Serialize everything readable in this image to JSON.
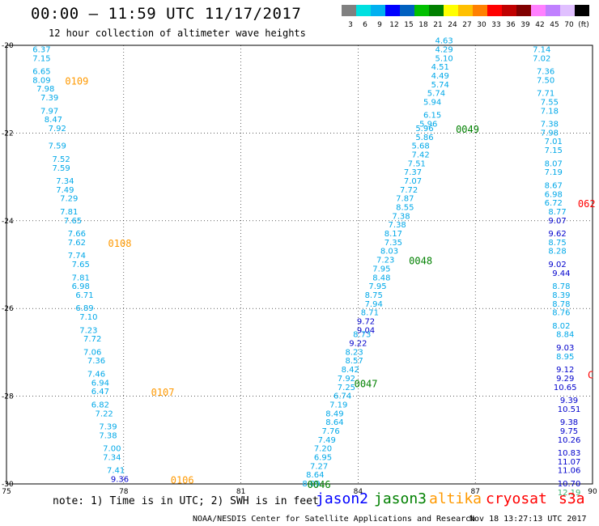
{
  "title": "00:00 – 11:59 UTC 11/17/2017",
  "subtitle": "12 hour collection of altimeter wave heights",
  "colorbar": {
    "ticks": [
      "3",
      "6",
      "9",
      "12",
      "15",
      "18",
      "21",
      "24",
      "27",
      "30",
      "33",
      "36",
      "39",
      "42",
      "45",
      "70",
      "(ft)"
    ],
    "colors": [
      "#808080",
      "#00e0e0",
      "#00b0f0",
      "#0000ff",
      "#0060c0",
      "#00c000",
      "#008000",
      "#ffff00",
      "#ffc000",
      "#ff8000",
      "#ff0000",
      "#c00000",
      "#800000",
      "#ff80ff",
      "#c080ff",
      "#e0c0ff",
      "#000000"
    ]
  },
  "footer": {
    "note": "note: 1) Time is in UTC; 2) SWH is in feet",
    "credit": "NOAA/NESDIS Center for Satellite Applications and Research",
    "date": "Nov 18 13:27:13 UTC 2017"
  },
  "satellites": [
    {
      "name": "jason2",
      "color": "#0000ff"
    },
    {
      "name": "jason3",
      "color": "#008000"
    },
    {
      "name": "altika",
      "color": "#ff9900"
    },
    {
      "name": "cryosat",
      "color": "#ff0000"
    },
    {
      "name": "s3a",
      "color": "#ff0000"
    }
  ],
  "chart_data": {
    "type": "scatter",
    "xlim": [
      75,
      90
    ],
    "ylim": [
      -30,
      -20
    ],
    "xticks": [
      "75",
      "78",
      "81",
      "84",
      "87",
      "90"
    ],
    "yticks": [
      "-20",
      "-22",
      "-24",
      "-26",
      "-28",
      "-30"
    ],
    "grid": true,
    "value_colors": {
      "cyan": "#00a8e8",
      "blue": "#0000cc",
      "green": "#3cb371"
    },
    "tracks": [
      {
        "satellite": "altika",
        "points": [
          {
            "x": 75.9,
            "y": -20.1,
            "v": "6.37",
            "c": "cyan"
          },
          {
            "x": 75.9,
            "y": -20.3,
            "v": "7.15",
            "c": "cyan"
          },
          {
            "x": 75.9,
            "y": -20.6,
            "v": "6.65",
            "c": "cyan"
          },
          {
            "x": 75.9,
            "y": -20.8,
            "v": "8.09",
            "c": "cyan"
          },
          {
            "x": 76.0,
            "y": -21.0,
            "v": "7.98",
            "c": "cyan"
          },
          {
            "x": 76.1,
            "y": -21.2,
            "v": "7.39",
            "c": "cyan"
          },
          {
            "x": 76.1,
            "y": -21.5,
            "v": "7.97",
            "c": "cyan"
          },
          {
            "x": 76.2,
            "y": -21.7,
            "v": "8.47",
            "c": "cyan"
          },
          {
            "x": 76.3,
            "y": -21.9,
            "v": "7.92",
            "c": "cyan"
          },
          {
            "x": 76.3,
            "y": -22.3,
            "v": "7.59",
            "c": "cyan"
          },
          {
            "x": 76.4,
            "y": -22.6,
            "v": "7.52",
            "c": "cyan"
          },
          {
            "x": 76.4,
            "y": -22.8,
            "v": "7.59",
            "c": "cyan"
          },
          {
            "x": 76.5,
            "y": -23.1,
            "v": "7.34",
            "c": "cyan"
          },
          {
            "x": 76.5,
            "y": -23.3,
            "v": "7.49",
            "c": "cyan"
          },
          {
            "x": 76.6,
            "y": -23.5,
            "v": "7.29",
            "c": "cyan"
          },
          {
            "x": 76.6,
            "y": -23.8,
            "v": "7.81",
            "c": "cyan"
          },
          {
            "x": 76.7,
            "y": -24.0,
            "v": "7.65",
            "c": "cyan"
          },
          {
            "x": 76.8,
            "y": -24.3,
            "v": "7.66",
            "c": "cyan"
          },
          {
            "x": 76.8,
            "y": -24.5,
            "v": "7.62",
            "c": "cyan"
          },
          {
            "x": 76.8,
            "y": -24.8,
            "v": "7.74",
            "c": "cyan"
          },
          {
            "x": 76.9,
            "y": -25.0,
            "v": "7.65",
            "c": "cyan"
          },
          {
            "x": 76.9,
            "y": -25.3,
            "v": "7.81",
            "c": "cyan"
          },
          {
            "x": 76.9,
            "y": -25.5,
            "v": "6.98",
            "c": "cyan"
          },
          {
            "x": 77.0,
            "y": -25.7,
            "v": "6.71",
            "c": "cyan"
          },
          {
            "x": 77.0,
            "y": -26.0,
            "v": "6.89",
            "c": "cyan"
          },
          {
            "x": 77.1,
            "y": -26.2,
            "v": "7.10",
            "c": "cyan"
          },
          {
            "x": 77.1,
            "y": -26.5,
            "v": "7.23",
            "c": "cyan"
          },
          {
            "x": 77.2,
            "y": -26.7,
            "v": "7.72",
            "c": "cyan"
          },
          {
            "x": 77.2,
            "y": -27.0,
            "v": "7.06",
            "c": "cyan"
          },
          {
            "x": 77.3,
            "y": -27.2,
            "v": "7.36",
            "c": "cyan"
          },
          {
            "x": 77.3,
            "y": -27.5,
            "v": "7.46",
            "c": "cyan"
          },
          {
            "x": 77.4,
            "y": -27.7,
            "v": "6.94",
            "c": "cyan"
          },
          {
            "x": 77.4,
            "y": -27.9,
            "v": "6.47",
            "c": "cyan"
          },
          {
            "x": 77.4,
            "y": -28.2,
            "v": "6.82",
            "c": "cyan"
          },
          {
            "x": 77.5,
            "y": -28.4,
            "v": "7.22",
            "c": "cyan"
          },
          {
            "x": 77.6,
            "y": -28.7,
            "v": "7.39",
            "c": "cyan"
          },
          {
            "x": 77.6,
            "y": -28.9,
            "v": "7.38",
            "c": "cyan"
          },
          {
            "x": 77.7,
            "y": -29.2,
            "v": "7.00",
            "c": "cyan"
          },
          {
            "x": 77.7,
            "y": -29.4,
            "v": "7.34",
            "c": "cyan"
          },
          {
            "x": 77.8,
            "y": -29.7,
            "v": "7.41",
            "c": "cyan"
          },
          {
            "x": 77.9,
            "y": -29.9,
            "v": "9.36",
            "c": "blue"
          }
        ],
        "passes": [
          {
            "label": "0109",
            "x": 76.8,
            "y": -20.8
          },
          {
            "label": "0108",
            "x": 77.9,
            "y": -24.5
          },
          {
            "label": "0107",
            "x": 79.0,
            "y": -27.9
          },
          {
            "label": "0106",
            "x": 79.5,
            "y": -29.9
          }
        ]
      },
      {
        "satellite": "jason3",
        "points": [
          {
            "x": 86.2,
            "y": -19.9,
            "v": "4.63",
            "c": "cyan"
          },
          {
            "x": 86.2,
            "y": -20.1,
            "v": "4.29",
            "c": "cyan"
          },
          {
            "x": 86.2,
            "y": -20.3,
            "v": "5.10",
            "c": "cyan"
          },
          {
            "x": 86.1,
            "y": -20.5,
            "v": "4.51",
            "c": "cyan"
          },
          {
            "x": 86.1,
            "y": -20.7,
            "v": "4.49",
            "c": "cyan"
          },
          {
            "x": 86.1,
            "y": -20.9,
            "v": "5.74",
            "c": "cyan"
          },
          {
            "x": 86.0,
            "y": -21.1,
            "v": "5.74",
            "c": "cyan"
          },
          {
            "x": 85.9,
            "y": -21.3,
            "v": "5.94",
            "c": "cyan"
          },
          {
            "x": 85.9,
            "y": -21.6,
            "v": "6.15",
            "c": "cyan"
          },
          {
            "x": 85.8,
            "y": -21.8,
            "v": "5.96",
            "c": "cyan"
          },
          {
            "x": 85.7,
            "y": -21.9,
            "v": "5.96",
            "c": "cyan"
          },
          {
            "x": 85.7,
            "y": -22.1,
            "v": "5.86",
            "c": "cyan"
          },
          {
            "x": 85.6,
            "y": -22.3,
            "v": "5.68",
            "c": "cyan"
          },
          {
            "x": 85.6,
            "y": -22.5,
            "v": "7.42",
            "c": "cyan"
          },
          {
            "x": 85.5,
            "y": -22.7,
            "v": "7.51",
            "c": "cyan"
          },
          {
            "x": 85.4,
            "y": -22.9,
            "v": "7.37",
            "c": "cyan"
          },
          {
            "x": 85.4,
            "y": -23.1,
            "v": "7.07",
            "c": "cyan"
          },
          {
            "x": 85.3,
            "y": -23.3,
            "v": "7.72",
            "c": "cyan"
          },
          {
            "x": 85.2,
            "y": -23.5,
            "v": "7.87",
            "c": "cyan"
          },
          {
            "x": 85.2,
            "y": -23.7,
            "v": "8.55",
            "c": "cyan"
          },
          {
            "x": 85.1,
            "y": -23.9,
            "v": "7.38",
            "c": "cyan"
          },
          {
            "x": 85.0,
            "y": -24.1,
            "v": "7.38",
            "c": "cyan"
          },
          {
            "x": 84.9,
            "y": -24.3,
            "v": "8.17",
            "c": "cyan"
          },
          {
            "x": 84.9,
            "y": -24.5,
            "v": "7.35",
            "c": "cyan"
          },
          {
            "x": 84.8,
            "y": -24.7,
            "v": "8.03",
            "c": "cyan"
          },
          {
            "x": 84.7,
            "y": -24.9,
            "v": "7.23",
            "c": "cyan"
          },
          {
            "x": 84.6,
            "y": -25.1,
            "v": "7.95",
            "c": "cyan"
          },
          {
            "x": 84.6,
            "y": -25.3,
            "v": "8.48",
            "c": "cyan"
          },
          {
            "x": 84.5,
            "y": -25.5,
            "v": "7.95",
            "c": "cyan"
          },
          {
            "x": 84.4,
            "y": -25.7,
            "v": "8.75",
            "c": "cyan"
          },
          {
            "x": 84.4,
            "y": -25.9,
            "v": "7.94",
            "c": "cyan"
          },
          {
            "x": 84.3,
            "y": -26.1,
            "v": "8.71",
            "c": "cyan"
          },
          {
            "x": 84.2,
            "y": -26.3,
            "v": "9.72",
            "c": "blue"
          },
          {
            "x": 84.2,
            "y": -26.5,
            "v": "9.04",
            "c": "blue"
          },
          {
            "x": 84.1,
            "y": -26.6,
            "v": "8.73",
            "c": "cyan"
          },
          {
            "x": 84.0,
            "y": -26.8,
            "v": "9.22",
            "c": "blue"
          },
          {
            "x": 83.9,
            "y": -27.0,
            "v": "8.23",
            "c": "cyan"
          },
          {
            "x": 83.9,
            "y": -27.2,
            "v": "8.57",
            "c": "cyan"
          },
          {
            "x": 83.8,
            "y": -27.4,
            "v": "8.42",
            "c": "cyan"
          },
          {
            "x": 83.7,
            "y": -27.6,
            "v": "7.92",
            "c": "cyan"
          },
          {
            "x": 83.7,
            "y": -27.8,
            "v": "7.25",
            "c": "cyan"
          },
          {
            "x": 83.6,
            "y": -28.0,
            "v": "6.74",
            "c": "cyan"
          },
          {
            "x": 83.5,
            "y": -28.2,
            "v": "7.19",
            "c": "cyan"
          },
          {
            "x": 83.4,
            "y": -28.4,
            "v": "8.49",
            "c": "cyan"
          },
          {
            "x": 83.4,
            "y": -28.6,
            "v": "8.64",
            "c": "cyan"
          },
          {
            "x": 83.3,
            "y": -28.8,
            "v": "7.76",
            "c": "cyan"
          },
          {
            "x": 83.2,
            "y": -29.0,
            "v": "7.49",
            "c": "cyan"
          },
          {
            "x": 83.1,
            "y": -29.2,
            "v": "7.20",
            "c": "cyan"
          },
          {
            "x": 83.1,
            "y": -29.4,
            "v": "6.95",
            "c": "cyan"
          },
          {
            "x": 83.0,
            "y": -29.6,
            "v": "7.27",
            "c": "cyan"
          },
          {
            "x": 82.9,
            "y": -29.8,
            "v": "8.64",
            "c": "cyan"
          },
          {
            "x": 82.8,
            "y": -30.0,
            "v": "8.09",
            "c": "cyan"
          }
        ],
        "passes": [
          {
            "label": "0049",
            "x": 86.8,
            "y": -21.9
          },
          {
            "label": "0048",
            "x": 85.6,
            "y": -24.9
          },
          {
            "label": "0047",
            "x": 84.2,
            "y": -27.7
          },
          {
            "label": "0046",
            "x": 83.0,
            "y": -30.0
          }
        ]
      },
      {
        "satellite": "cryosat",
        "points": [
          {
            "x": 88.7,
            "y": -20.1,
            "v": "7.14",
            "c": "cyan"
          },
          {
            "x": 88.7,
            "y": -20.3,
            "v": "7.02",
            "c": "cyan"
          },
          {
            "x": 88.8,
            "y": -20.6,
            "v": "7.36",
            "c": "cyan"
          },
          {
            "x": 88.8,
            "y": -20.8,
            "v": "7.50",
            "c": "cyan"
          },
          {
            "x": 88.8,
            "y": -21.1,
            "v": "7.71",
            "c": "cyan"
          },
          {
            "x": 88.9,
            "y": -21.3,
            "v": "7.55",
            "c": "cyan"
          },
          {
            "x": 88.9,
            "y": -21.5,
            "v": "7.18",
            "c": "cyan"
          },
          {
            "x": 88.9,
            "y": -21.8,
            "v": "7.38",
            "c": "cyan"
          },
          {
            "x": 88.9,
            "y": -22.0,
            "v": "7.98",
            "c": "cyan"
          },
          {
            "x": 89.0,
            "y": -22.2,
            "v": "7.01",
            "c": "cyan"
          },
          {
            "x": 89.0,
            "y": -22.4,
            "v": "7.15",
            "c": "cyan"
          },
          {
            "x": 89.0,
            "y": -22.7,
            "v": "8.07",
            "c": "cyan"
          },
          {
            "x": 89.0,
            "y": -22.9,
            "v": "7.19",
            "c": "cyan"
          },
          {
            "x": 89.0,
            "y": -23.2,
            "v": "8.67",
            "c": "cyan"
          },
          {
            "x": 89.0,
            "y": -23.4,
            "v": "6.98",
            "c": "cyan"
          },
          {
            "x": 89.0,
            "y": -23.6,
            "v": "6.72",
            "c": "cyan"
          },
          {
            "x": 89.1,
            "y": -23.8,
            "v": "8.77",
            "c": "cyan"
          },
          {
            "x": 89.1,
            "y": -24.0,
            "v": "9.07",
            "c": "blue"
          },
          {
            "x": 89.1,
            "y": -24.3,
            "v": "9.62",
            "c": "blue"
          },
          {
            "x": 89.1,
            "y": -24.5,
            "v": "8.75",
            "c": "cyan"
          },
          {
            "x": 89.1,
            "y": -24.7,
            "v": "8.28",
            "c": "cyan"
          },
          {
            "x": 89.1,
            "y": -25.0,
            "v": "9.02",
            "c": "blue"
          },
          {
            "x": 89.2,
            "y": -25.2,
            "v": "9.44",
            "c": "blue"
          },
          {
            "x": 89.2,
            "y": -25.5,
            "v": "8.78",
            "c": "cyan"
          },
          {
            "x": 89.2,
            "y": -25.7,
            "v": "8.39",
            "c": "cyan"
          },
          {
            "x": 89.2,
            "y": -25.9,
            "v": "8.78",
            "c": "cyan"
          },
          {
            "x": 89.2,
            "y": -26.1,
            "v": "8.76",
            "c": "cyan"
          },
          {
            "x": 89.2,
            "y": -26.4,
            "v": "8.02",
            "c": "cyan"
          },
          {
            "x": 89.3,
            "y": -26.6,
            "v": "8.84",
            "c": "cyan"
          },
          {
            "x": 89.3,
            "y": -26.9,
            "v": "9.03",
            "c": "blue"
          },
          {
            "x": 89.3,
            "y": -27.1,
            "v": "8.95",
            "c": "cyan"
          },
          {
            "x": 89.3,
            "y": -27.4,
            "v": "9.12",
            "c": "blue"
          },
          {
            "x": 89.3,
            "y": -27.6,
            "v": "9.29",
            "c": "blue"
          },
          {
            "x": 89.3,
            "y": -27.8,
            "v": "10.65",
            "c": "blue"
          },
          {
            "x": 89.4,
            "y": -28.1,
            "v": "9.39",
            "c": "blue"
          },
          {
            "x": 89.4,
            "y": -28.3,
            "v": "10.51",
            "c": "blue"
          },
          {
            "x": 89.4,
            "y": -28.6,
            "v": "9.38",
            "c": "blue"
          },
          {
            "x": 89.4,
            "y": -28.8,
            "v": "9.75",
            "c": "blue"
          },
          {
            "x": 89.4,
            "y": -29.0,
            "v": "10.26",
            "c": "blue"
          },
          {
            "x": 89.4,
            "y": -29.3,
            "v": "10.83",
            "c": "blue"
          },
          {
            "x": 89.4,
            "y": -29.5,
            "v": "11.07",
            "c": "blue"
          },
          {
            "x": 89.4,
            "y": -29.7,
            "v": "11.06",
            "c": "blue"
          },
          {
            "x": 89.4,
            "y": -30.0,
            "v": "10.70",
            "c": "blue"
          },
          {
            "x": 89.4,
            "y": -30.2,
            "v": "12.19",
            "c": "green"
          }
        ],
        "passes": [
          {
            "label": "062",
            "x": 89.85,
            "y": -23.6
          },
          {
            "label": "C",
            "x": 89.95,
            "y": -27.5
          }
        ]
      }
    ]
  }
}
